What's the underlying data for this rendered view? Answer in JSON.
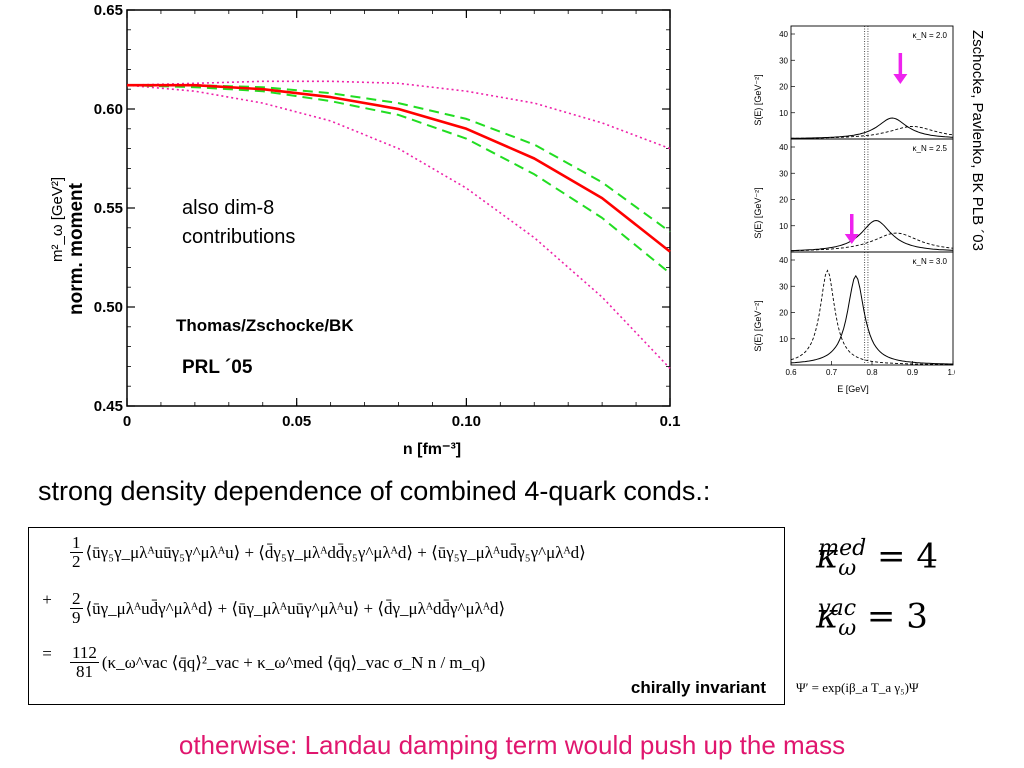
{
  "main_chart": {
    "axis": {
      "y_label_symbol": "m²_ω [GeV²]",
      "y_label_text": "norm. moment",
      "x_label": "n [fm⁻³]",
      "x_ticks": [
        "0",
        "0.05",
        "0.10",
        "0.1"
      ],
      "y_ticks": [
        "0.65",
        "0.60",
        "0.55",
        "0.50",
        "0.45"
      ]
    },
    "annotation_line1": "also dim-8",
    "annotation_line2": "contributions",
    "authors": "Thomas/Zschocke/BK",
    "reference": "PRL ´05"
  },
  "inset_chart": {
    "panel_labels": [
      "κ_N = 2.0",
      "κ_N = 2.5",
      "κ_N = 3.0"
    ],
    "y_label": "S(E) [GeV⁻²]",
    "x_label": "E [GeV]",
    "x_ticks": [
      "0.6",
      "0.7",
      "0.8",
      "0.9",
      "1.0"
    ],
    "y_ticks": [
      "10",
      "20",
      "30",
      "40"
    ],
    "arrow_color": "#ee22ee"
  },
  "side_reference": "Zschocke, Pavlenko, BK PLB ´03",
  "headline": "strong density dependence of combined 4-quark conds.:",
  "formula": {
    "line1": "⟨ūγ₅γ_μλᴬuūγ₅γ^μλᴬu⟩ + ⟨d̄γ₅γ_μλᴬdd̄γ₅γ^μλᴬd⟩ + ⟨ūγ₅γ_μλᴬud̄γ₅γ^μλᴬd⟩",
    "line2": "⟨ūγ_μλᴬud̄γ^μλᴬd⟩ + ⟨ūγ_μλᴬuūγ^μλᴬu⟩ + ⟨d̄γ_μλᴬdd̄γ^μλᴬd⟩",
    "line3": "(κ_ω^vac ⟨q̄q⟩²_vac + κ_ω^med ⟨q̄q⟩_vac σ_N n / m_q)",
    "label": "chirally invariant"
  },
  "chiral_transform": "Ψ′ = exp(iβ_a T_a γ₅)Ψ",
  "kappa_med_value": "4",
  "kappa_vac_value": "3",
  "footer": "otherwise: Landau damping term would push up the mass",
  "colors": {
    "central_curve": "#ff0000",
    "band_dashed": "#22dd22",
    "band_dotted": "#ee22aa",
    "footer_text": "#e0166e"
  },
  "chart_data": [
    {
      "type": "line",
      "xlim": [
        0,
        0.16
      ],
      "ylim": [
        0.45,
        0.65
      ],
      "x": [
        0,
        0.02,
        0.04,
        0.06,
        0.08,
        0.1,
        0.12,
        0.14,
        0.16
      ],
      "series": [
        {
          "values": [
            0.612,
            0.612,
            0.61,
            0.606,
            0.6,
            0.59,
            0.575,
            0.555,
            0.528
          ]
        },
        {
          "values": [
            0.612,
            0.612,
            0.611,
            0.608,
            0.603,
            0.595,
            0.582,
            0.563,
            0.538
          ]
        },
        {
          "values": [
            0.612,
            0.611,
            0.609,
            0.604,
            0.597,
            0.585,
            0.567,
            0.545,
            0.517
          ]
        },
        {
          "values": [
            0.612,
            0.613,
            0.614,
            0.614,
            0.613,
            0.609,
            0.603,
            0.593,
            0.58
          ]
        },
        {
          "values": [
            0.612,
            0.609,
            0.603,
            0.594,
            0.58,
            0.56,
            0.535,
            0.505,
            0.469
          ]
        }
      ]
    },
    {
      "type": "line",
      "xlim": [
        0.6,
        1.0
      ],
      "ylim": [
        0,
        40
      ],
      "panels": [
        {
          "kappa_N": 2.0,
          "peak_E": 0.85,
          "peak_S": 8,
          "arrow_E": 0.87
        },
        {
          "kappa_N": 2.5,
          "peak_E": 0.81,
          "peak_S": 12,
          "arrow_E": 0.75
        },
        {
          "kappa_N": 3.0,
          "peak_E": 0.76,
          "peak_S": 34,
          "dashed_peak_E": 0.69,
          "dashed_peak_S": 36
        }
      ]
    }
  ]
}
